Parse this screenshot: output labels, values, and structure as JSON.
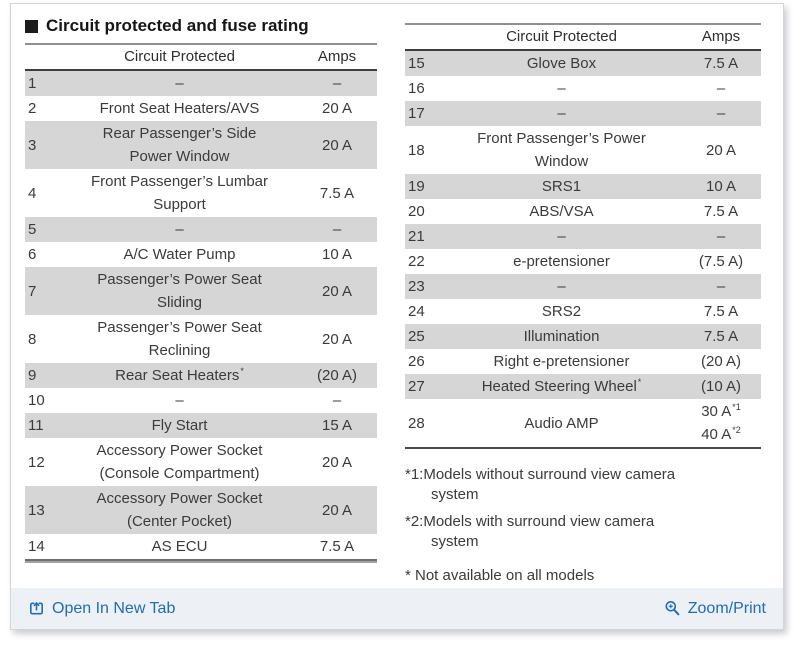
{
  "title": "Circuit protected and fuse rating",
  "colors": {
    "link_blue": "#1e6db8",
    "row_shade": "#d6d6d6",
    "footer_bar_bg": "#edf1f6",
    "text": "#3b3b3b"
  },
  "table_headers": {
    "circuit": "Circuit Protected",
    "amps": "Amps"
  },
  "left_table": {
    "rows": [
      {
        "num": "1",
        "circuit": "–",
        "amps": [
          "–"
        ]
      },
      {
        "num": "2",
        "circuit": "Front Seat Heaters/AVS",
        "amps": [
          "20 A"
        ]
      },
      {
        "num": "3",
        "circuit": "Rear Passenger’s Side\nPower Window",
        "amps": [
          "20 A"
        ]
      },
      {
        "num": "4",
        "circuit": "Front Passenger’s Lumbar\nSupport",
        "amps": [
          "7.5 A"
        ]
      },
      {
        "num": "5",
        "circuit": "–",
        "amps": [
          "–"
        ]
      },
      {
        "num": "6",
        "circuit": "A/C Water Pump",
        "amps": [
          "10 A"
        ]
      },
      {
        "num": "7",
        "circuit": "Passenger’s Power Seat\nSliding",
        "amps": [
          "20 A"
        ]
      },
      {
        "num": "8",
        "circuit": "Passenger’s Power Seat\nReclining",
        "amps": [
          "20 A"
        ]
      },
      {
        "num": "9",
        "circuit": "Rear Seat Heaters",
        "circuit_sup": "*",
        "amps": [
          "(20 A)"
        ]
      },
      {
        "num": "10",
        "circuit": "–",
        "amps": [
          "–"
        ]
      },
      {
        "num": "11",
        "circuit": "Fly Start",
        "amps": [
          "15 A"
        ]
      },
      {
        "num": "12",
        "circuit": "Accessory Power Socket\n(Console Compartment)",
        "amps": [
          "20 A"
        ]
      },
      {
        "num": "13",
        "circuit": "Accessory Power Socket\n(Center Pocket)",
        "amps": [
          "20 A"
        ]
      },
      {
        "num": "14",
        "circuit": "AS ECU",
        "amps": [
          "7.5 A"
        ]
      }
    ]
  },
  "right_table": {
    "rows": [
      {
        "num": "15",
        "circuit": "Glove Box",
        "amps": [
          "7.5 A"
        ]
      },
      {
        "num": "16",
        "circuit": "–",
        "amps": [
          "–"
        ]
      },
      {
        "num": "17",
        "circuit": "–",
        "amps": [
          "–"
        ]
      },
      {
        "num": "18",
        "circuit": "Front Passenger’s Power\nWindow",
        "amps": [
          "20 A"
        ]
      },
      {
        "num": "19",
        "circuit": "SRS1",
        "amps": [
          "10 A"
        ]
      },
      {
        "num": "20",
        "circuit": "ABS/VSA",
        "amps": [
          "7.5 A"
        ]
      },
      {
        "num": "21",
        "circuit": "–",
        "amps": [
          "–"
        ]
      },
      {
        "num": "22",
        "circuit": "e-pretensioner",
        "amps": [
          "(7.5 A)"
        ]
      },
      {
        "num": "23",
        "circuit": "–",
        "amps": [
          "–"
        ]
      },
      {
        "num": "24",
        "circuit": "SRS2",
        "amps": [
          "7.5 A"
        ]
      },
      {
        "num": "25",
        "circuit": "Illumination",
        "amps": [
          "7.5 A"
        ]
      },
      {
        "num": "26",
        "circuit": "Right e-pretensioner",
        "amps": [
          "(20 A)"
        ]
      },
      {
        "num": "27",
        "circuit": "Heated Steering Wheel",
        "circuit_sup": "*",
        "amps": [
          "(10 A)"
        ]
      },
      {
        "num": "28",
        "circuit": "Audio AMP",
        "amps": [
          {
            "text": "30 A",
            "sup": "*1"
          },
          {
            "text": "40 A",
            "sup": "*2"
          }
        ]
      }
    ]
  },
  "footnotes": [
    "*1:Models without surround view camera\nsystem",
    "*2:Models with surround view camera\nsystem",
    "* Not available on all models"
  ],
  "footer": {
    "open_in_new_tab": "Open In New Tab",
    "zoom_print": "Zoom/Print"
  },
  "icons": {
    "footer_left": "open-in-new-tab-icon",
    "footer_right": "zoom-magnifier-plus-icon"
  }
}
